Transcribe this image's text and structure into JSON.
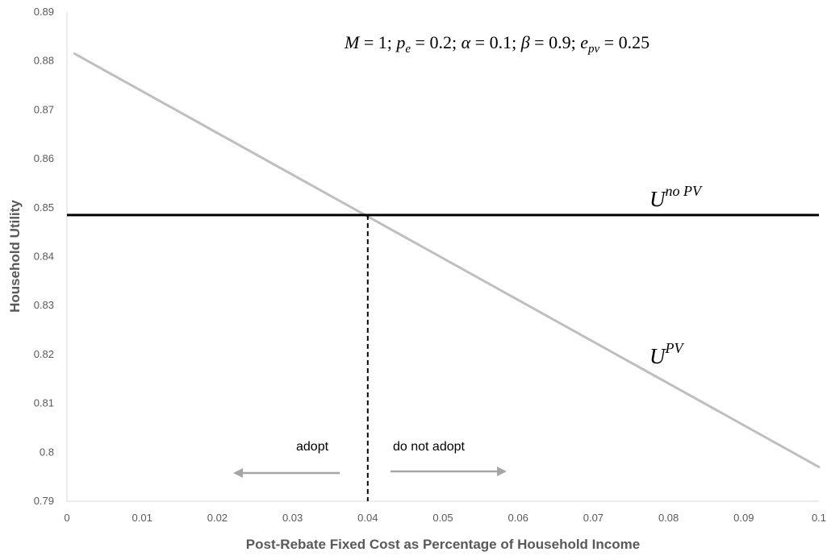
{
  "chart_data": {
    "type": "line",
    "xlabel": "Post-Rebate Fixed Cost as Percentage of Household Income",
    "ylabel": "Household Utility",
    "xlim": [
      0,
      0.1
    ],
    "ylim": [
      0.79,
      0.89
    ],
    "x_ticks": [
      "0",
      "0.01",
      "0.02",
      "0.03",
      "0.04",
      "0.05",
      "0.06",
      "0.07",
      "0.08",
      "0.09",
      "0.1"
    ],
    "y_ticks": [
      "0.79",
      "0.8",
      "0.81",
      "0.82",
      "0.83",
      "0.84",
      "0.85",
      "0.86",
      "0.87",
      "0.88",
      "0.89"
    ],
    "grid": false,
    "series": [
      {
        "name": "U^PV",
        "color": "#bfbfbf",
        "x": [
          0.001,
          0.1
        ],
        "y": [
          0.8815,
          0.797
        ]
      },
      {
        "name": "U^no PV",
        "color": "#000000",
        "x": [
          0.0,
          0.1
        ],
        "y": [
          0.8485,
          0.8485
        ]
      }
    ],
    "threshold": {
      "x": 0.04,
      "color": "#000000",
      "style": "dashed"
    },
    "parameters_annotation": {
      "M": "1",
      "p_e": "0.2",
      "alpha": "0.1",
      "beta": "0.9",
      "e_pv": "0.25"
    },
    "annotations": {
      "adopt": "adopt",
      "do_not_adopt": "do not adopt",
      "curve_label_pv": {
        "base": "U",
        "sup": "PV"
      },
      "curve_label_nopv": {
        "base": "U",
        "sup": "no PV"
      }
    },
    "arrow_color": "#a6a6a6"
  }
}
